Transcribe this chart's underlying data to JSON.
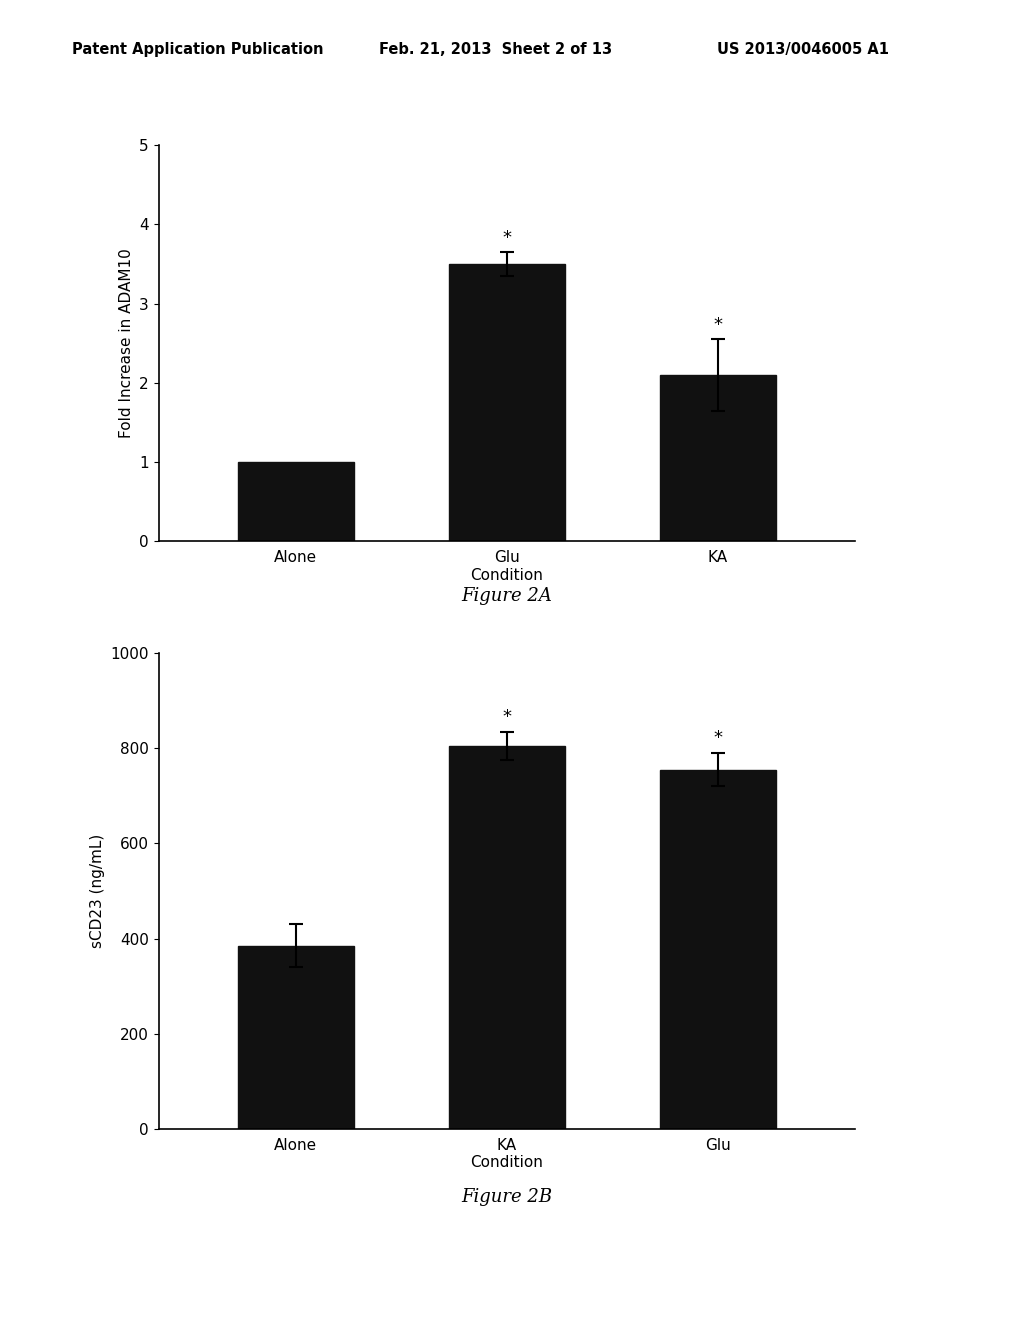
{
  "fig2a": {
    "categories": [
      "Alone",
      "Glu\nCondition",
      "KA"
    ],
    "values": [
      1.0,
      3.5,
      2.1
    ],
    "errors": [
      0.0,
      0.15,
      0.45
    ],
    "ylabel": "Fold Increase in ADAM10",
    "ylim": [
      0,
      5
    ],
    "yticks": [
      0,
      1,
      2,
      3,
      4,
      5
    ],
    "significance": [
      false,
      true,
      true
    ],
    "title": "Figure 2A",
    "bar_color": "#111111"
  },
  "fig2b": {
    "categories": [
      "Alone",
      "KA\nCondition",
      "Glu"
    ],
    "values": [
      385,
      805,
      755
    ],
    "errors": [
      45,
      30,
      35
    ],
    "ylabel": "sCD23 (ng/mL)",
    "ylim": [
      0,
      1000
    ],
    "yticks": [
      0,
      200,
      400,
      600,
      800,
      1000
    ],
    "significance": [
      false,
      true,
      true
    ],
    "title": "Figure 2B",
    "bar_color": "#111111"
  },
  "header_left": "Patent Application Publication",
  "header_center": "Feb. 21, 2013  Sheet 2 of 13",
  "header_right": "US 2013/0046005 A1",
  "background_color": "#ffffff",
  "bar_width": 0.55,
  "fig_width": 10.24,
  "fig_height": 13.2
}
